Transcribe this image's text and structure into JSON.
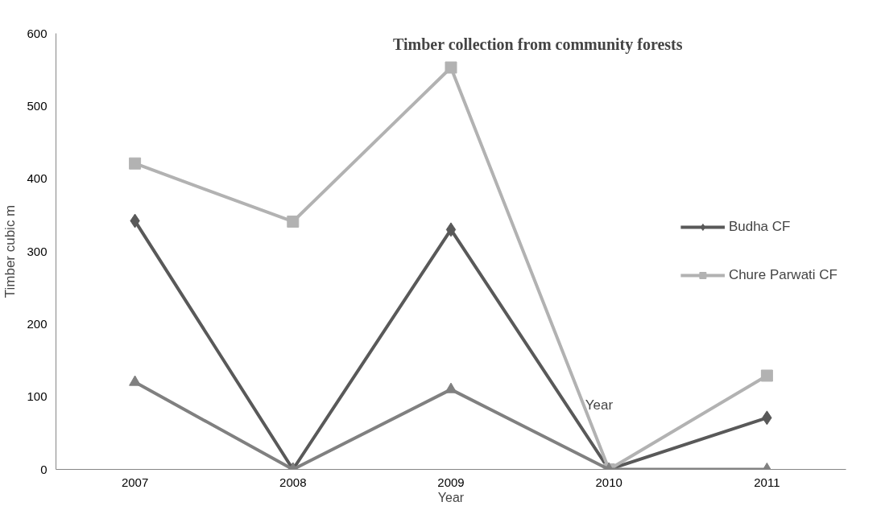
{
  "chart_data": {
    "type": "line",
    "title": "Timber collection from community forests",
    "xlabel": "Year",
    "ylabel": "Timber cubic m",
    "categories": [
      "2007",
      "2008",
      "2009",
      "2010",
      "2011"
    ],
    "series": [
      {
        "name": "Budha CF",
        "color": "#595959",
        "marker": "diamond",
        "values": [
          342,
          0,
          330,
          0,
          71
        ]
      },
      {
        "name": "Chure Parwati CF",
        "color": "#b2b2b2",
        "marker": "square",
        "values": [
          421,
          341,
          553,
          0,
          129
        ]
      },
      {
        "color": "#808080",
        "marker": "triangle",
        "values": [
          120,
          0,
          110,
          0,
          0
        ]
      }
    ],
    "annotations": [
      "Year"
    ],
    "ylim": [
      0,
      600
    ],
    "yticks": [
      0,
      100,
      200,
      300,
      400,
      500,
      600
    ],
    "grid": false,
    "legend": "right",
    "line_style": "solid"
  }
}
